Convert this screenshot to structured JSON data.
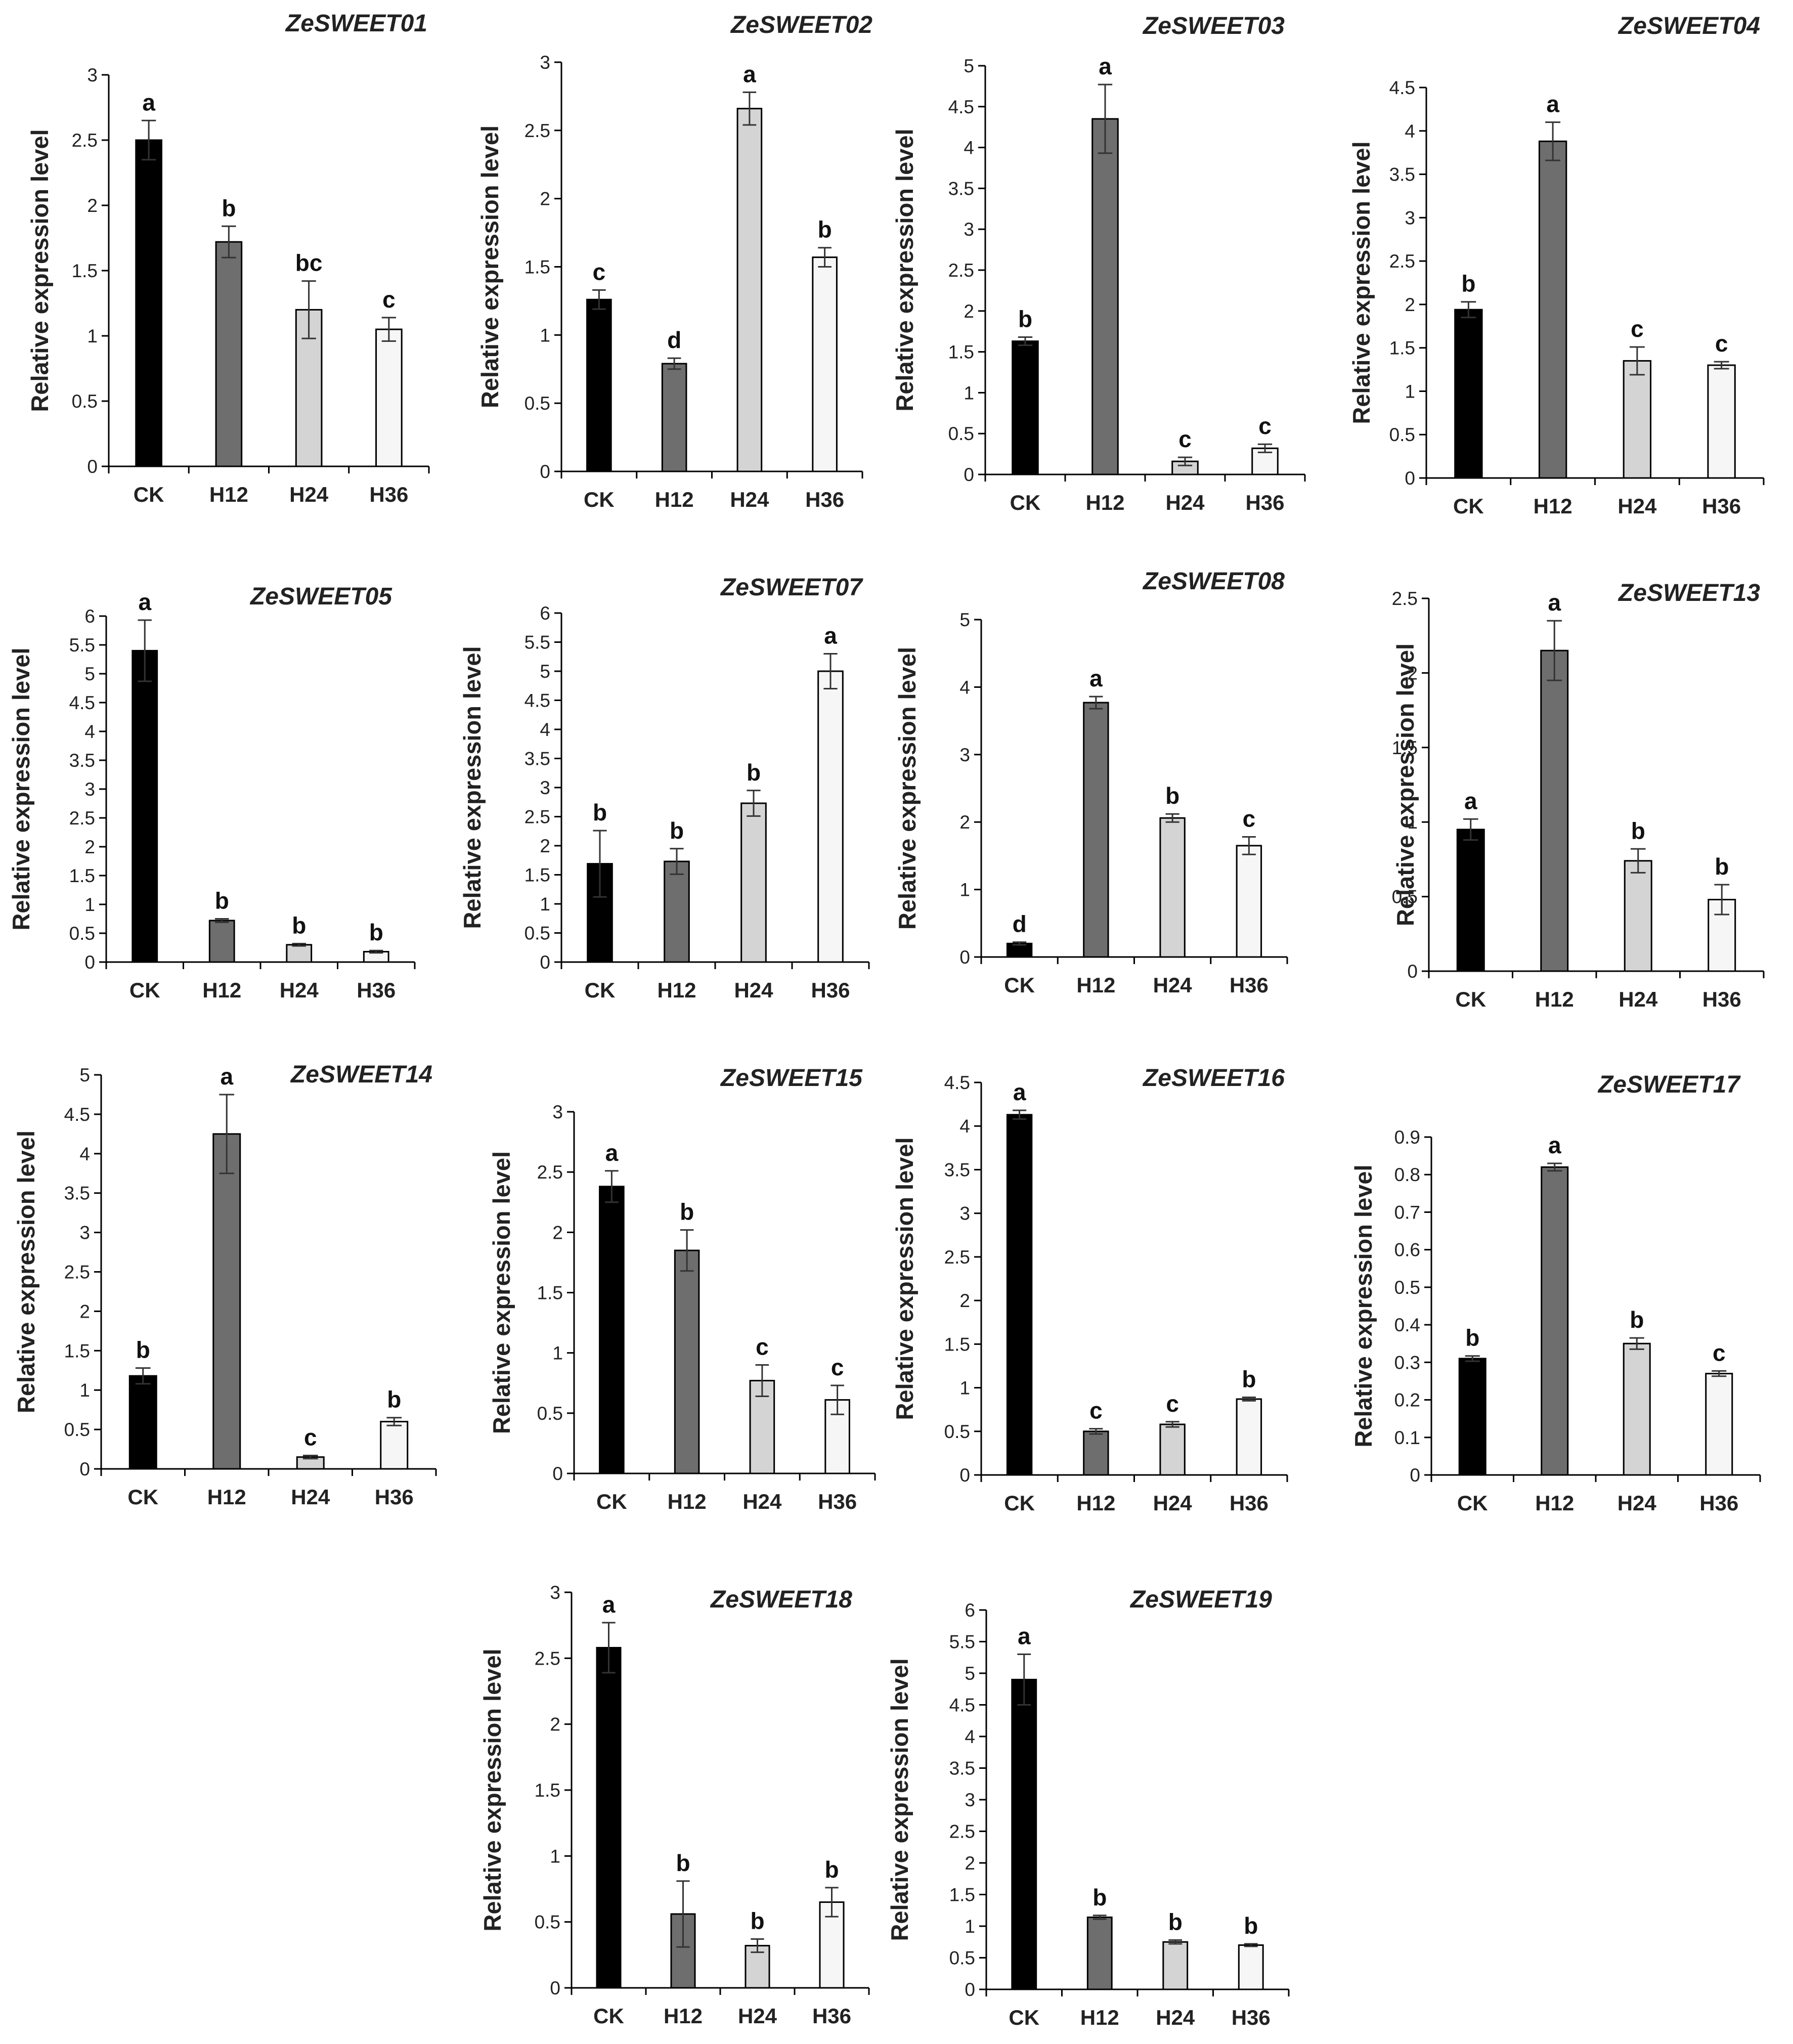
{
  "figure": {
    "category_labels": [
      "CK",
      "H12",
      "H24",
      "H36"
    ],
    "ylabel": "Relative expression level",
    "bar_colors": [
      "#000000",
      "#6e6e6e",
      "#d4d4d4",
      "#f6f6f6"
    ]
  },
  "chart_data": [
    {
      "type": "bar",
      "title": "ZeSWEET01",
      "ylabel": "Relative expression level",
      "categories": [
        "CK",
        "H12",
        "H24",
        "H36"
      ],
      "ylim": [
        0,
        3
      ],
      "ystep": 0.5,
      "values": [
        2.5,
        1.72,
        1.2,
        1.05
      ],
      "errors": [
        0.15,
        0.12,
        0.22,
        0.09
      ],
      "letters": [
        "a",
        "b",
        "bc",
        "c"
      ]
    },
    {
      "type": "bar",
      "title": "ZeSWEET02",
      "ylabel": "Relative expression level",
      "categories": [
        "CK",
        "H12",
        "H24",
        "H36"
      ],
      "ylim": [
        0,
        3
      ],
      "ystep": 0.5,
      "values": [
        1.26,
        0.79,
        2.66,
        1.57
      ],
      "errors": [
        0.07,
        0.04,
        0.12,
        0.07
      ],
      "letters": [
        "c",
        "d",
        "a",
        "b"
      ]
    },
    {
      "type": "bar",
      "title": "ZeSWEET03",
      "ylabel": "Relative expression level",
      "categories": [
        "CK",
        "H12",
        "H24",
        "H36"
      ],
      "ylim": [
        0,
        5
      ],
      "ystep": 0.5,
      "values": [
        1.63,
        4.35,
        0.16,
        0.32
      ],
      "errors": [
        0.05,
        0.42,
        0.05,
        0.05
      ],
      "letters": [
        "b",
        "a",
        "c",
        "c"
      ]
    },
    {
      "type": "bar",
      "title": "ZeSWEET04",
      "ylabel": "Relative expression level",
      "categories": [
        "CK",
        "H12",
        "H24",
        "H36"
      ],
      "ylim": [
        0,
        4.5
      ],
      "ystep": 0.5,
      "values": [
        1.94,
        3.88,
        1.35,
        1.3
      ],
      "errors": [
        0.09,
        0.22,
        0.16,
        0.04
      ],
      "letters": [
        "b",
        "a",
        "c",
        "c"
      ]
    },
    {
      "type": "bar",
      "title": "ZeSWEET05",
      "ylabel": "Relative expression level",
      "categories": [
        "CK",
        "H12",
        "H24",
        "H36"
      ],
      "ylim": [
        0,
        6
      ],
      "ystep": 0.5,
      "values": [
        5.4,
        0.72,
        0.3,
        0.18
      ],
      "errors": [
        0.53,
        0.03,
        0.02,
        0.02
      ],
      "letters": [
        "a",
        "b",
        "b",
        "b"
      ]
    },
    {
      "type": "bar",
      "title": "ZeSWEET07",
      "ylabel": "Relative expression level",
      "categories": [
        "CK",
        "H12",
        "H24",
        "H36"
      ],
      "ylim": [
        0,
        6
      ],
      "ystep": 0.5,
      "values": [
        1.69,
        1.73,
        2.73,
        5.0
      ],
      "errors": [
        0.57,
        0.22,
        0.22,
        0.3
      ],
      "letters": [
        "b",
        "b",
        "b",
        "a"
      ]
    },
    {
      "type": "bar",
      "title": "ZeSWEET08",
      "ylabel": "Relative expression level",
      "categories": [
        "CK",
        "H12",
        "H24",
        "H36"
      ],
      "ylim": [
        0,
        5
      ],
      "ystep": 1,
      "values": [
        0.2,
        3.77,
        2.06,
        1.65
      ],
      "errors": [
        0.02,
        0.09,
        0.06,
        0.13
      ],
      "letters": [
        "d",
        "a",
        "b",
        "c"
      ]
    },
    {
      "type": "bar",
      "title": "ZeSWEET13",
      "ylabel": "Relative expression level",
      "categories": [
        "CK",
        "H12",
        "H24",
        "H36"
      ],
      "ylim": [
        0,
        2.5
      ],
      "ystep": 0.5,
      "values": [
        0.95,
        2.15,
        0.74,
        0.48
      ],
      "errors": [
        0.07,
        0.2,
        0.08,
        0.1
      ],
      "letters": [
        "a",
        "a",
        "b",
        "b"
      ]
    },
    {
      "type": "bar",
      "title": "ZeSWEET14",
      "ylabel": "Relative expression level",
      "categories": [
        "CK",
        "H12",
        "H24",
        "H36"
      ],
      "ylim": [
        0,
        5
      ],
      "ystep": 0.5,
      "values": [
        1.18,
        4.25,
        0.15,
        0.6
      ],
      "errors": [
        0.1,
        0.5,
        0.02,
        0.05
      ],
      "letters": [
        "b",
        "a",
        "c",
        "b"
      ]
    },
    {
      "type": "bar",
      "title": "ZeSWEET15",
      "ylabel": "Relative expression level",
      "categories": [
        "CK",
        "H12",
        "H24",
        "H36"
      ],
      "ylim": [
        0,
        3
      ],
      "ystep": 0.5,
      "values": [
        2.38,
        1.85,
        0.77,
        0.61
      ],
      "errors": [
        0.13,
        0.17,
        0.13,
        0.12
      ],
      "letters": [
        "a",
        "b",
        "c",
        "c"
      ]
    },
    {
      "type": "bar",
      "title": "ZeSWEET16",
      "ylabel": "Relative expression level",
      "categories": [
        "CK",
        "H12",
        "H24",
        "H36"
      ],
      "ylim": [
        0,
        4.5
      ],
      "ystep": 0.5,
      "values": [
        4.13,
        0.5,
        0.58,
        0.87
      ],
      "errors": [
        0.05,
        0.03,
        0.03,
        0.02
      ],
      "letters": [
        "a",
        "c",
        "c",
        "b"
      ]
    },
    {
      "type": "bar",
      "title": "ZeSWEET17",
      "ylabel": "Relative expression level",
      "categories": [
        "CK",
        "H12",
        "H24",
        "H36"
      ],
      "ylim": [
        0,
        0.9
      ],
      "ystep": 0.1,
      "values": [
        0.31,
        0.82,
        0.35,
        0.27
      ],
      "errors": [
        0.007,
        0.01,
        0.015,
        0.007
      ],
      "letters": [
        "b",
        "a",
        "b",
        "c"
      ]
    },
    {
      "type": "bar",
      "title": "ZeSWEET18",
      "ylabel": "Relative expression level",
      "categories": [
        "CK",
        "H12",
        "H24",
        "H36"
      ],
      "ylim": [
        0,
        3
      ],
      "ystep": 0.5,
      "values": [
        2.58,
        0.56,
        0.32,
        0.65
      ],
      "errors": [
        0.19,
        0.25,
        0.05,
        0.11
      ],
      "letters": [
        "a",
        "b",
        "b",
        "b"
      ]
    },
    {
      "type": "bar",
      "title": "ZeSWEET19",
      "ylabel": "Relative expression level",
      "categories": [
        "CK",
        "H12",
        "H24",
        "H36"
      ],
      "ylim": [
        0,
        6
      ],
      "ystep": 0.5,
      "values": [
        4.9,
        1.14,
        0.75,
        0.7
      ],
      "errors": [
        0.4,
        0.03,
        0.03,
        0.02
      ],
      "letters": [
        "a",
        "b",
        "b",
        "b"
      ]
    }
  ]
}
